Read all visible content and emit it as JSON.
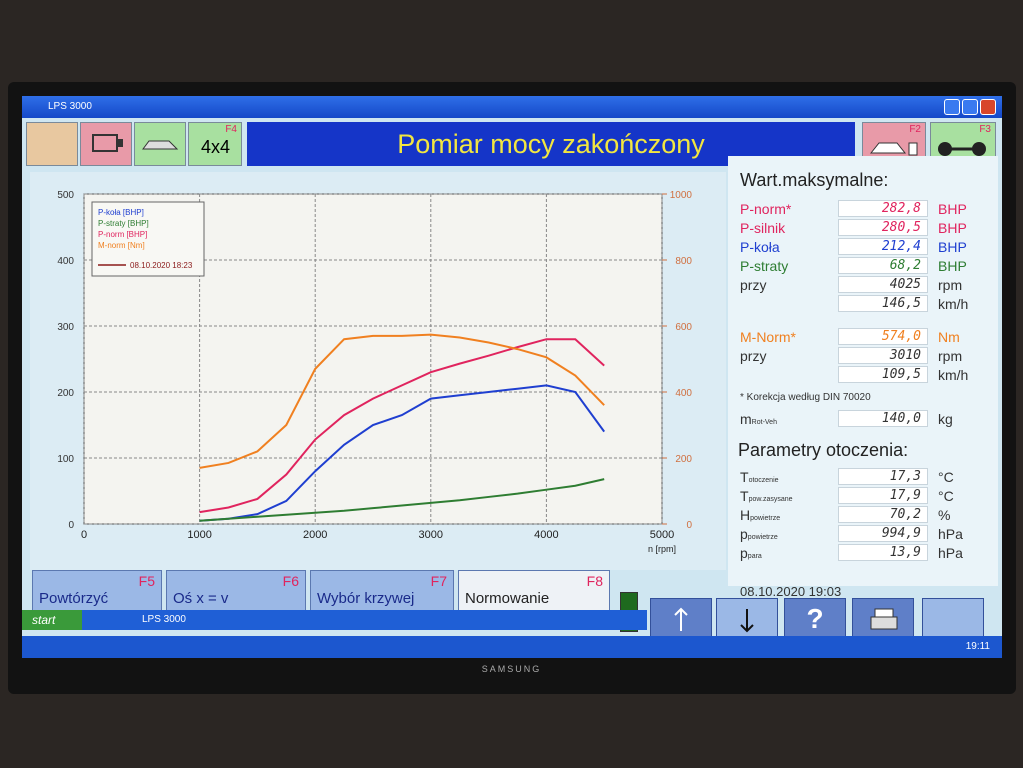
{
  "window": {
    "title": "LPS 3000"
  },
  "toolbar": {
    "f4_key": "F4",
    "f4_label": "4x4",
    "f2_key": "F2",
    "f3_key": "F3"
  },
  "header": {
    "title": "Pomiar mocy zakończony"
  },
  "chart_data": {
    "type": "line",
    "x_label": "n [rpm]",
    "x": [
      1000,
      1250,
      1500,
      1750,
      2000,
      2250,
      2500,
      2750,
      3000,
      3250,
      3500,
      3750,
      4000,
      4250,
      4500
    ],
    "xlim": [
      0,
      5000
    ],
    "xticks": [
      0,
      1000,
      2000,
      3000,
      4000,
      5000
    ],
    "ylim": [
      0,
      500
    ],
    "yticks": [
      0,
      100,
      200,
      300,
      400,
      500
    ],
    "y2lim": [
      0,
      1000
    ],
    "y2ticks": [
      0,
      200,
      400,
      600,
      800,
      1000
    ],
    "grid": true,
    "legend": "upper left",
    "series": [
      {
        "name": "P-koła [BHP]",
        "color": "#1f3fd0",
        "values": [
          5,
          8,
          15,
          35,
          80,
          120,
          150,
          165,
          190,
          195,
          200,
          205,
          210,
          200,
          140
        ]
      },
      {
        "name": "P-straty [BHP]",
        "color": "#2e7d32",
        "values": [
          5,
          8,
          11,
          14,
          17,
          20,
          24,
          28,
          32,
          36,
          41,
          46,
          52,
          58,
          68
        ]
      },
      {
        "name": "P-norm [BHP]",
        "color": "#e0245e",
        "values": [
          18,
          25,
          38,
          75,
          128,
          165,
          190,
          210,
          230,
          243,
          255,
          268,
          280,
          280,
          240
        ]
      },
      {
        "name": "M-norm [Nm]",
        "color": "#f08020",
        "axis": "y2",
        "values": [
          170,
          185,
          220,
          300,
          470,
          560,
          570,
          570,
          574,
          565,
          550,
          530,
          505,
          450,
          360
        ]
      }
    ],
    "reference_label": "08.10.2020 18:23",
    "reference_color": "#8b1a1a"
  },
  "max_values": {
    "title": "Wart.maksymalne:",
    "rows": [
      {
        "label": "P-norm*",
        "value": "282,8",
        "unit": "BHP",
        "color": "#e0245e"
      },
      {
        "label": "P-silnik",
        "value": "280,5",
        "unit": "BHP",
        "color": "#e0245e"
      },
      {
        "label": "P-koła",
        "value": "212,4",
        "unit": "BHP",
        "color": "#1f3fd0"
      },
      {
        "label": "P-straty",
        "value": "68,2",
        "unit": "BHP",
        "color": "#2e7d32"
      },
      {
        "label": "przy",
        "value": "4025",
        "unit": "rpm",
        "color": "#333333"
      },
      {
        "value": "146,5",
        "unit": "km/h",
        "color": "#333333"
      },
      {
        "label": "M-Norm*",
        "value": "574,0",
        "unit": "Nm",
        "color": "#f08020"
      },
      {
        "label": "przy",
        "value": "3010",
        "unit": "rpm",
        "color": "#333333"
      },
      {
        "value": "109,5",
        "unit": "km/h",
        "color": "#333333"
      }
    ],
    "footnote": "* Korekcja według DIN 70020",
    "mass": {
      "symbol": "m",
      "sub": "Rot-Veh",
      "value": "140,0",
      "unit": "kg"
    }
  },
  "ambient": {
    "title": "Parametry otoczenia:",
    "rows": [
      {
        "symbol": "T",
        "sub": "otoczenie",
        "value": "17,3",
        "unit": "°C"
      },
      {
        "symbol": "T",
        "sub": "pow.zasysane",
        "value": "17,9",
        "unit": "°C"
      },
      {
        "symbol": "H",
        "sub": "powietrze",
        "value": "70,2",
        "unit": "%"
      },
      {
        "symbol": "p",
        "sub": "powietrze",
        "value": "994,9",
        "unit": "hPa"
      },
      {
        "symbol": "p",
        "sub": "para",
        "value": "13,9",
        "unit": "hPa"
      }
    ]
  },
  "timestamp": "08.10.2020 19:03",
  "function_keys": [
    {
      "key": "F5",
      "label": "Powtórzyć"
    },
    {
      "key": "F6",
      "label": "Oś x = v"
    },
    {
      "key": "F7",
      "label": "Wybór krzywej"
    },
    {
      "key": "F8",
      "label": "Normowanie"
    }
  ],
  "help_label": "?",
  "taskbar": {
    "start": "start",
    "task": "LPS 3000",
    "clock": "19:11"
  },
  "monitor": {
    "brand": "SAMSUNG"
  }
}
